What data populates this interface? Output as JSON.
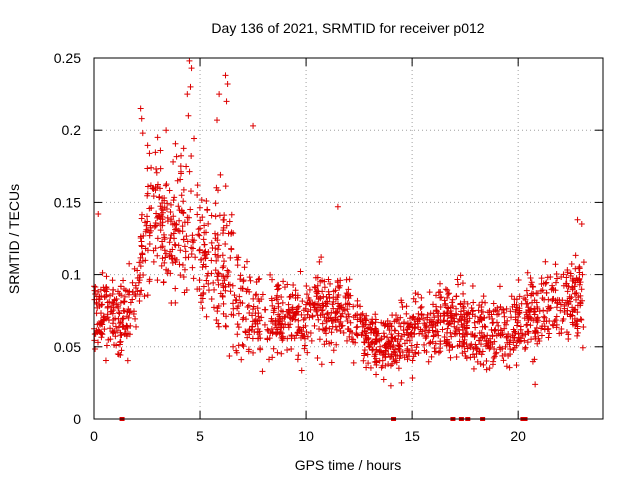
{
  "chart_data": {
    "type": "scatter",
    "title": "Day 136 of 2021, SRMTID for receiver p012",
    "xlabel": "GPS time / hours",
    "ylabel": "SRMTID / TECUs",
    "xlim": [
      0,
      24
    ],
    "ylim": [
      0,
      0.25
    ],
    "xticks": [
      0,
      5,
      10,
      15,
      20
    ],
    "yticks": [
      0,
      0.05,
      0.1,
      0.15,
      0.2,
      0.25
    ],
    "x_tick_labels": [
      "0",
      "5",
      "10",
      "15",
      "20"
    ],
    "y_tick_labels": [
      "0",
      "0.05",
      "0.1",
      "0.15",
      "0.2",
      "0.25"
    ],
    "grid": true,
    "marker": "+",
    "marker_color": "#dd0000",
    "trend": {
      "x": [
        0,
        0.5,
        1,
        1.5,
        2,
        2.3,
        2.6,
        3,
        3.5,
        4,
        4.5,
        5,
        5.5,
        6,
        6.5,
        7,
        7.5,
        8,
        9,
        10,
        11,
        12,
        13,
        14,
        15,
        16,
        17,
        18,
        19,
        20,
        21,
        22,
        23
      ],
      "y": [
        0.075,
        0.072,
        0.068,
        0.07,
        0.08,
        0.12,
        0.145,
        0.14,
        0.13,
        0.135,
        0.14,
        0.12,
        0.105,
        0.11,
        0.1,
        0.08,
        0.07,
        0.072,
        0.07,
        0.068,
        0.075,
        0.072,
        0.055,
        0.052,
        0.06,
        0.065,
        0.068,
        0.06,
        0.058,
        0.065,
        0.075,
        0.08,
        0.085
      ],
      "spread": [
        0.02,
        0.02,
        0.018,
        0.018,
        0.025,
        0.03,
        0.035,
        0.035,
        0.035,
        0.035,
        0.04,
        0.035,
        0.035,
        0.04,
        0.035,
        0.025,
        0.02,
        0.02,
        0.02,
        0.02,
        0.022,
        0.02,
        0.015,
        0.015,
        0.018,
        0.018,
        0.02,
        0.018,
        0.018,
        0.02,
        0.022,
        0.022,
        0.022
      ]
    },
    "highlights": [
      {
        "x": 4.5,
        "y": 0.248
      },
      {
        "x": 4.6,
        "y": 0.243
      },
      {
        "x": 4.55,
        "y": 0.23
      },
      {
        "x": 4.4,
        "y": 0.225
      },
      {
        "x": 4.45,
        "y": 0.21
      },
      {
        "x": 6.2,
        "y": 0.238
      },
      {
        "x": 6.3,
        "y": 0.232
      },
      {
        "x": 6.25,
        "y": 0.22
      },
      {
        "x": 5.9,
        "y": 0.225
      },
      {
        "x": 5.8,
        "y": 0.207
      },
      {
        "x": 7.5,
        "y": 0.203
      },
      {
        "x": 2.2,
        "y": 0.215
      },
      {
        "x": 2.25,
        "y": 0.208
      },
      {
        "x": 2.3,
        "y": 0.198
      },
      {
        "x": 3.4,
        "y": 0.2
      },
      {
        "x": 3.0,
        "y": 0.195
      },
      {
        "x": 11.5,
        "y": 0.147
      },
      {
        "x": 14.0,
        "y": 0.023
      },
      {
        "x": 14.5,
        "y": 0.025
      },
      {
        "x": 20.8,
        "y": 0.024
      },
      {
        "x": 0.2,
        "y": 0.142
      },
      {
        "x": 22.8,
        "y": 0.138
      },
      {
        "x": 23.0,
        "y": 0.135
      }
    ],
    "zero_markers": [
      1.3,
      14.1,
      16.9,
      17.3,
      17.6,
      18.3,
      20.2,
      20.3
    ]
  }
}
